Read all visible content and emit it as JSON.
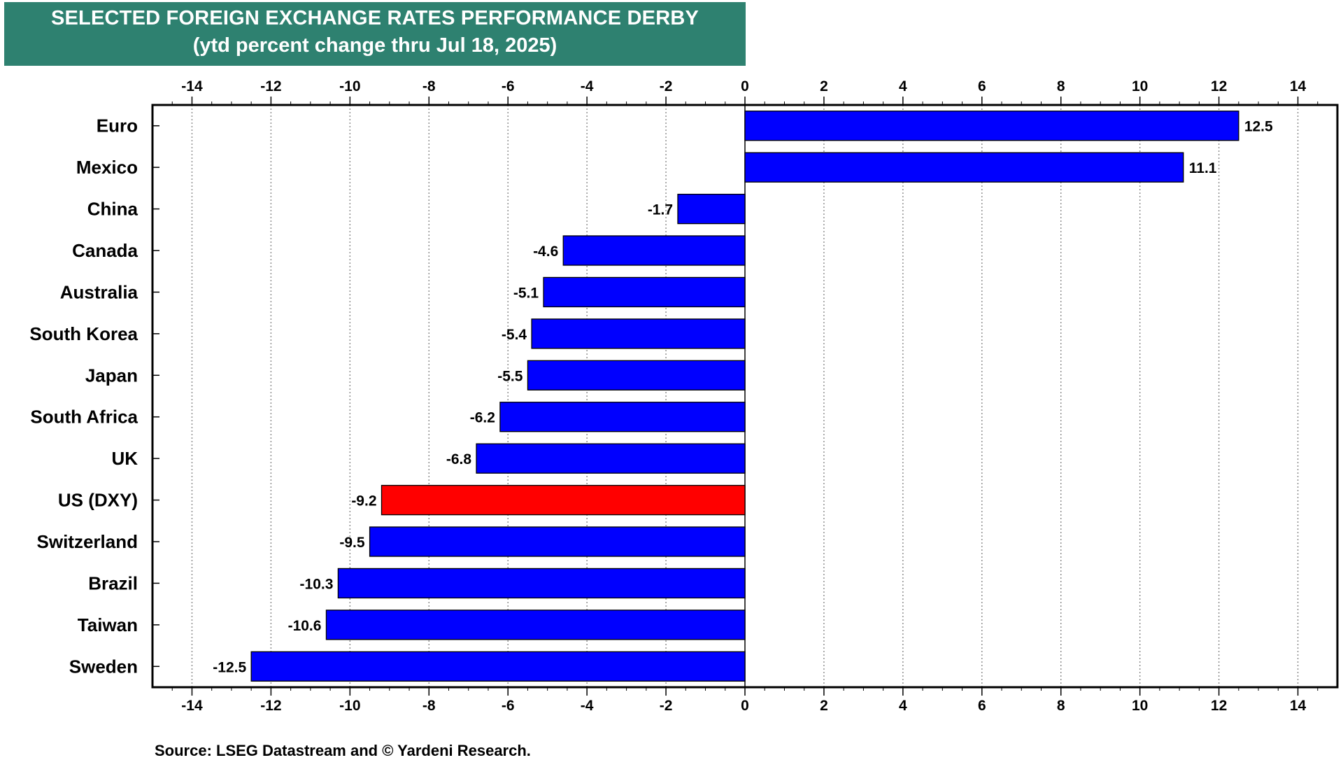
{
  "chart_data": {
    "type": "bar",
    "orientation": "horizontal",
    "title": "SELECTED FOREIGN EXCHANGE RATES PERFORMANCE DERBY",
    "subtitle": "(ytd percent change thru Jul 18, 2025)",
    "xlim": [
      -15,
      15
    ],
    "x_ticks": [
      -14,
      -12,
      -10,
      -8,
      -6,
      -4,
      -2,
      0,
      2,
      4,
      6,
      8,
      10,
      12,
      14
    ],
    "grid": "vertical dotted",
    "categories": [
      "Euro",
      "Mexico",
      "China",
      "Canada",
      "Australia",
      "South Korea",
      "Japan",
      "South Africa",
      "UK",
      "US (DXY)",
      "Switzerland",
      "Brazil",
      "Taiwan",
      "Sweden"
    ],
    "values": [
      12.5,
      11.1,
      -1.7,
      -4.6,
      -5.1,
      -5.4,
      -5.5,
      -6.2,
      -6.8,
      -9.2,
      -9.5,
      -10.3,
      -10.6,
      -12.5
    ],
    "value_labels": [
      "12.5",
      "11.1",
      "-1.7",
      "-4.6",
      "-5.1",
      "-5.4",
      "-5.5",
      "-6.2",
      "-6.8",
      "-9.2",
      "-9.5",
      "-10.3",
      "-10.6",
      "-12.5"
    ],
    "colors": [
      "#0000ff",
      "#0000ff",
      "#0000ff",
      "#0000ff",
      "#0000ff",
      "#0000ff",
      "#0000ff",
      "#0000ff",
      "#0000ff",
      "#ff0000",
      "#0000ff",
      "#0000ff",
      "#0000ff",
      "#0000ff"
    ]
  },
  "source": "Source: LSEG Datastream and © Yardeni Research."
}
